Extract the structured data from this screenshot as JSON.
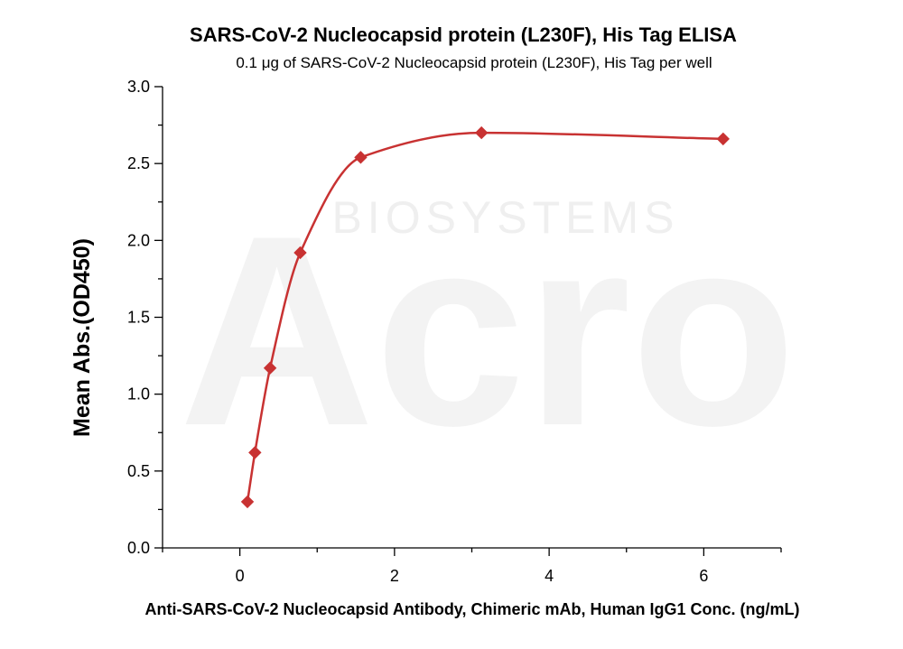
{
  "watermark": {
    "text_top": "BIOSYSTEMS",
    "text_big": "Acro"
  },
  "chart_data": {
    "type": "scatter",
    "title": "SARS-CoV-2 Nucleocapsid protein (L230F), His Tag ELISA",
    "subtitle": "0.1 μg of SARS-CoV-2 Nucleocapsid protein (L230F), His Tag per well",
    "xlabel": "Anti-SARS-CoV-2 Nucleocapsid Antibody, Chimeric mAb, Human IgG1 Conc. (ng/mL)",
    "ylabel": "Mean Abs.(OD450)",
    "xlim": [
      -1,
      7
    ],
    "ylim": [
      0,
      3
    ],
    "x_ticks": [
      0,
      2,
      4,
      6
    ],
    "y_ticks": [
      0.0,
      0.5,
      1.0,
      1.5,
      2.0,
      2.5,
      3.0
    ],
    "y_tick_labels": [
      "0.0",
      "0.5",
      "1.0",
      "1.5",
      "2.0",
      "2.5",
      "3.0"
    ],
    "grid": false,
    "series": [
      {
        "marker": "diamond",
        "color": "#c83232",
        "x": [
          0.098,
          0.195,
          0.391,
          0.781,
          1.563,
          3.125,
          6.25
        ],
        "y": [
          0.3,
          0.62,
          1.17,
          1.92,
          2.54,
          2.7,
          2.66
        ]
      }
    ],
    "fit_curve": {
      "color": "#c83232",
      "style": "smooth"
    }
  }
}
